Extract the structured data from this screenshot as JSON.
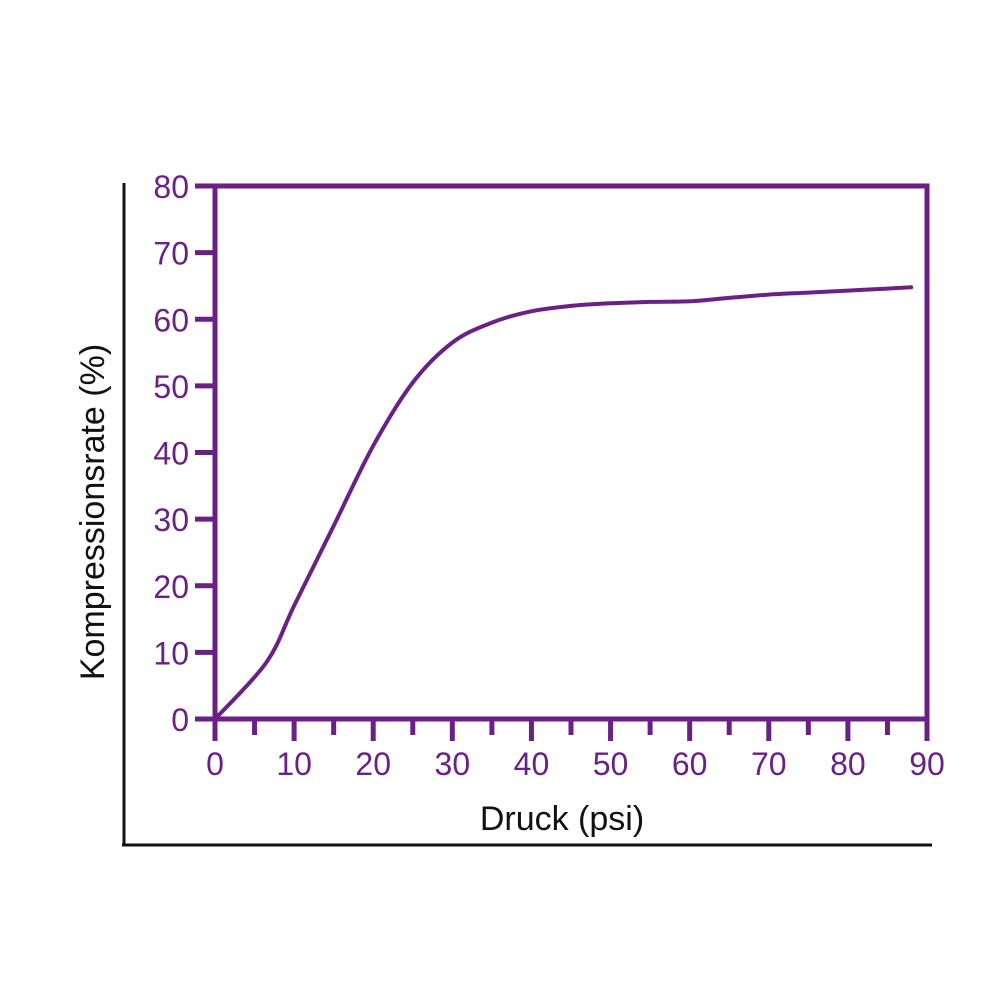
{
  "chart_data": {
    "type": "line",
    "title": "",
    "xlabel": "Druck (psi)",
    "ylabel": "Kompressionsrate (%)",
    "xlim": [
      0,
      90
    ],
    "ylim": [
      0,
      80
    ],
    "x_ticks": [
      0,
      10,
      20,
      30,
      40,
      50,
      60,
      70,
      80,
      90
    ],
    "y_ticks": [
      0,
      10,
      20,
      30,
      40,
      50,
      60,
      70,
      80
    ],
    "x_minor_step": 5,
    "grid": false,
    "series": [
      {
        "name": "",
        "x": [
          0,
          6.5,
          10,
          15,
          20,
          25,
          30,
          35,
          40,
          45,
          50,
          55,
          60,
          65,
          70,
          75,
          80,
          85,
          88
        ],
        "y": [
          0,
          8.5,
          17,
          29,
          41,
          50.5,
          56.5,
          59.5,
          61.2,
          62,
          62.4,
          62.6,
          62.7,
          63.2,
          63.7,
          64,
          64.3,
          64.6,
          64.8
        ]
      }
    ],
    "colors": {
      "frame": "#6a2186",
      "line": "#6a2186",
      "tick_labels": "#6a2186",
      "outer_axes": "#111111",
      "axis_titles": "#111111"
    }
  }
}
